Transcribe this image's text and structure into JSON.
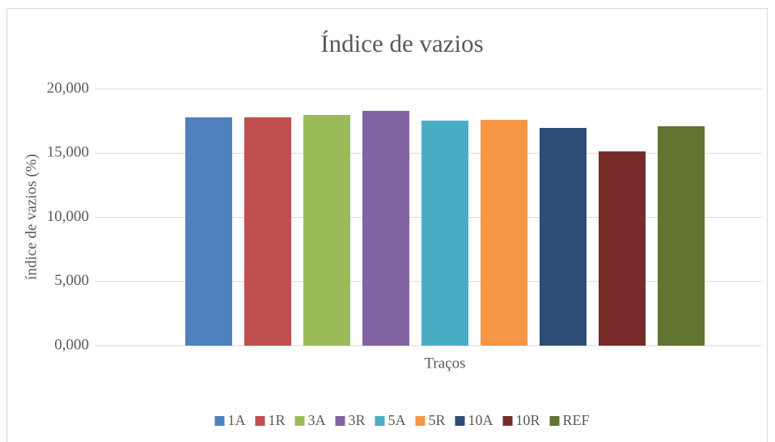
{
  "chart_data": {
    "type": "bar",
    "title": "Índice de vazios",
    "y_label": "índice de vazios (%)",
    "categories": [
      "Traços"
    ],
    "series": [
      {
        "name": "1A",
        "color": "#4f81bd",
        "values": [
          17.79
        ]
      },
      {
        "name": "1R",
        "color": "#c0504d",
        "values": [
          17.8
        ]
      },
      {
        "name": "3A",
        "color": "#9bbb59",
        "values": [
          17.98
        ]
      },
      {
        "name": "3R",
        "color": "#8064a2",
        "values": [
          18.3
        ]
      },
      {
        "name": "5A",
        "color": "#4bacc6",
        "values": [
          17.54
        ]
      },
      {
        "name": "5R",
        "color": "#f79646",
        "values": [
          17.6
        ]
      },
      {
        "name": "10A",
        "color": "#2c4d75",
        "values": [
          16.97
        ]
      },
      {
        "name": "10R",
        "color": "#772c2a",
        "values": [
          15.14
        ]
      },
      {
        "name": "REF",
        "color": "#5f7530",
        "values": [
          17.1
        ]
      }
    ],
    "ylim": [
      0,
      20
    ],
    "yticks": [
      {
        "value": 0,
        "label": "0,000"
      },
      {
        "value": 5,
        "label": "5,000"
      },
      {
        "value": 10,
        "label": "10,000"
      },
      {
        "value": 15,
        "label": "15,000"
      },
      {
        "value": 20,
        "label": "20,000"
      }
    ],
    "grid": true,
    "legend": "bottom"
  }
}
